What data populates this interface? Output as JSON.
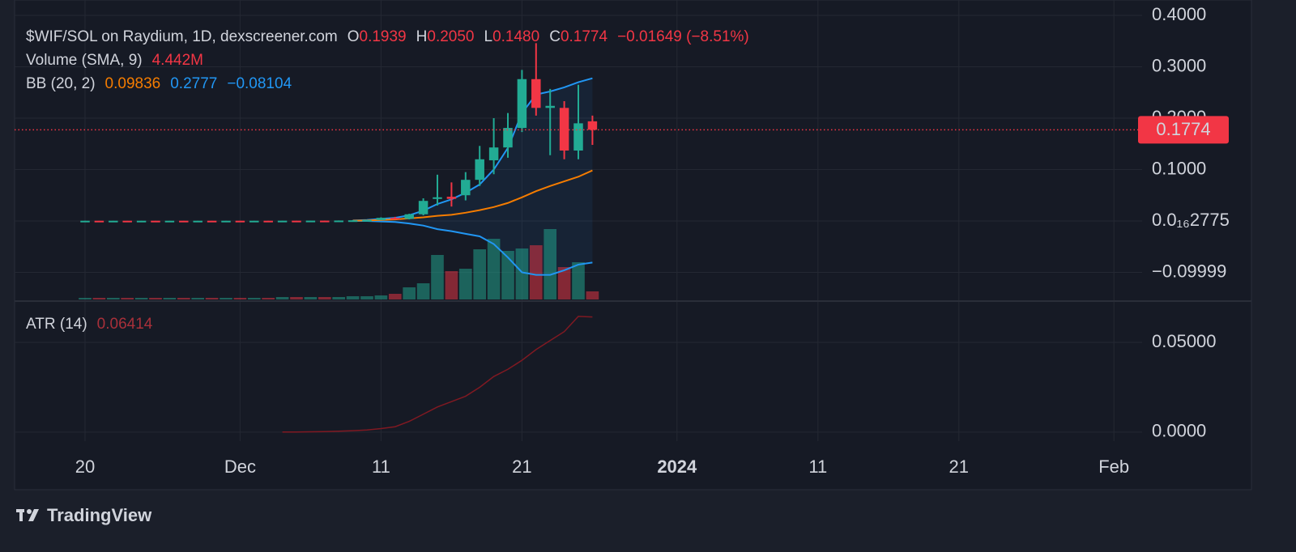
{
  "chart_data": {
    "type": "candlestick",
    "legend": {
      "title": "$WIF/SOL on Raydium, 1D, dexscreener.com",
      "ohlc": [
        {
          "key": "O",
          "value": "0.1939"
        },
        {
          "key": "H",
          "value": "0.2050"
        },
        {
          "key": "L",
          "value": "0.1480"
        },
        {
          "key": "C",
          "value": "0.1774"
        }
      ],
      "change": "−0.01649 (−8.51%)",
      "volume_name": "Volume (SMA, 9)",
      "volume_value": "4.442M",
      "bb_name": "BB (20, 2)",
      "bb_values": [
        "0.09836",
        "0.2777",
        "−0.08104"
      ],
      "atr_name": "ATR (14)",
      "atr_value": "0.06414"
    },
    "x": [
      "2023-11-20",
      "2023-11-21",
      "2023-11-22",
      "2023-11-23",
      "2023-11-24",
      "2023-11-25",
      "2023-11-26",
      "2023-11-27",
      "2023-11-28",
      "2023-11-29",
      "2023-11-30",
      "2023-12-01",
      "2023-12-02",
      "2023-12-03",
      "2023-12-04",
      "2023-12-05",
      "2023-12-06",
      "2023-12-07",
      "2023-12-08",
      "2023-12-09",
      "2023-12-10",
      "2023-12-11",
      "2023-12-12",
      "2023-12-13",
      "2023-12-14",
      "2023-12-15",
      "2023-12-16",
      "2023-12-17",
      "2023-12-18",
      "2023-12-19",
      "2023-12-20",
      "2023-12-21",
      "2023-12-22",
      "2023-12-23",
      "2023-12-24",
      "2023-12-25",
      "2023-12-26"
    ],
    "open": [
      0.0003,
      0.0004,
      0.0003,
      0.0004,
      0.0003,
      0.0004,
      0.0003,
      0.0004,
      0.0003,
      0.0004,
      0.0003,
      0.0004,
      0.0003,
      0.0004,
      0.0003,
      0.0005,
      0.0004,
      0.0006,
      0.0005,
      0.0008,
      0.0012,
      0.0018,
      0.006,
      0.004,
      0.013,
      0.043,
      0.047,
      0.05,
      0.08,
      0.118,
      0.143,
      0.181,
      0.276,
      0.22,
      0.22,
      0.137,
      0.1939
    ],
    "high": [
      0.0005,
      0.0005,
      0.0005,
      0.0005,
      0.0004,
      0.0005,
      0.0005,
      0.0005,
      0.0005,
      0.0005,
      0.0005,
      0.0005,
      0.0005,
      0.0006,
      0.0006,
      0.0006,
      0.0007,
      0.0008,
      0.0009,
      0.0015,
      0.002,
      0.007,
      0.008,
      0.014,
      0.044,
      0.09,
      0.075,
      0.095,
      0.146,
      0.2,
      0.21,
      0.294,
      0.346,
      0.257,
      0.233,
      0.265,
      0.205
    ],
    "low": [
      0.0002,
      0.0003,
      0.0003,
      0.0003,
      0.0002,
      0.0003,
      0.0003,
      0.0003,
      0.0003,
      0.0003,
      0.0003,
      0.0003,
      0.0003,
      0.0003,
      0.0003,
      0.0003,
      0.0004,
      0.0005,
      0.0005,
      0.0007,
      0.001,
      0.0015,
      0.003,
      0.003,
      0.011,
      0.03,
      0.028,
      0.04,
      0.068,
      0.091,
      0.123,
      0.173,
      0.205,
      0.128,
      0.12,
      0.12,
      0.148
    ],
    "close": [
      0.0004,
      0.0003,
      0.0004,
      0.0003,
      0.0004,
      0.0003,
      0.0004,
      0.0003,
      0.0004,
      0.0003,
      0.0004,
      0.0003,
      0.0004,
      0.0003,
      0.0005,
      0.0004,
      0.0006,
      0.0005,
      0.0008,
      0.0012,
      0.0018,
      0.006,
      0.004,
      0.013,
      0.039,
      0.046,
      0.043,
      0.08,
      0.12,
      0.143,
      0.181,
      0.276,
      0.22,
      0.224,
      0.137,
      0.19,
      0.1774
    ],
    "volume": [
      156800,
      156800,
      156800,
      156800,
      156800,
      156800,
      156800,
      156800,
      156800,
      156800,
      156800,
      156800,
      156800,
      156800,
      235200,
      235200,
      235200,
      235200,
      235200,
      313600,
      313600,
      392000,
      548800,
      1176000,
      1568000,
      4312000,
      2744000,
      2979200,
      4860800,
      5880000,
      4704000,
      4939200,
      5252800,
      6820800,
      3136000,
      3606400,
      784000
    ],
    "up_color": "#22ab94",
    "down_color": "#f23645",
    "bb": {
      "middle": [
        null,
        null,
        null,
        null,
        null,
        null,
        null,
        null,
        null,
        null,
        null,
        null,
        null,
        null,
        null,
        null,
        null,
        null,
        null,
        0.0005,
        0.001,
        0.002,
        0.003,
        0.005,
        0.007,
        0.01,
        0.012,
        0.016,
        0.021,
        0.027,
        0.035,
        0.046,
        0.058,
        0.068,
        0.077,
        0.086,
        0.09836
      ],
      "upper": [
        null,
        null,
        null,
        null,
        null,
        null,
        null,
        null,
        null,
        null,
        null,
        null,
        null,
        null,
        null,
        null,
        null,
        null,
        null,
        0.001,
        0.002,
        0.004,
        0.006,
        0.011,
        0.02,
        0.033,
        0.042,
        0.055,
        0.071,
        0.1,
        0.142,
        0.21,
        0.246,
        0.252,
        0.26,
        0.27,
        0.2777
      ],
      "lower": [
        null,
        null,
        null,
        null,
        null,
        null,
        null,
        null,
        null,
        null,
        null,
        null,
        null,
        null,
        null,
        null,
        null,
        null,
        null,
        0,
        0,
        -0.001,
        -0.002,
        -0.005,
        -0.009,
        -0.016,
        -0.02,
        -0.025,
        -0.03,
        -0.045,
        -0.071,
        -0.1,
        -0.105,
        -0.105,
        -0.096,
        -0.085,
        -0.08104
      ],
      "middle_color": "#f57c00",
      "band_color": "#2196f3"
    },
    "atr": {
      "values": [
        null,
        null,
        null,
        null,
        null,
        null,
        null,
        null,
        null,
        null,
        null,
        null,
        null,
        null,
        0.0001,
        0.0001,
        0.0002,
        0.0003,
        0.0005,
        0.0008,
        0.0012,
        0.002,
        0.003,
        0.006,
        0.01,
        0.014,
        0.017,
        0.02,
        0.025,
        0.031,
        0.035,
        0.04,
        0.046,
        0.051,
        0.056,
        0.0645,
        0.06414
      ],
      "color": "#801922",
      "ylim": [
        -0.005,
        0.073
      ],
      "yticks": [
        {
          "value": 0.05,
          "label": "0.05000"
        },
        {
          "value": 0,
          "label": "0.0000"
        }
      ]
    },
    "xlim": [
      "2023-11-15",
      "2024-02-03"
    ],
    "xticks": [
      {
        "value": "2023-11-20",
        "label": "20"
      },
      {
        "value": "2023-12-01",
        "label": "Dec"
      },
      {
        "value": "2023-12-11",
        "label": "11"
      },
      {
        "value": "2023-12-21",
        "label": "21"
      },
      {
        "value": "2024-01-01",
        "label": "2024"
      },
      {
        "value": "2024-01-11",
        "label": "11"
      },
      {
        "value": "2024-01-21",
        "label": "21"
      },
      {
        "value": "2024-02-01",
        "label": "Feb"
      }
    ],
    "ylim": [
      -0.156,
      0.43
    ],
    "yticks": [
      {
        "value": 0.4,
        "label": "0.4000"
      },
      {
        "value": 0.3,
        "label": "0.3000"
      },
      {
        "value": 0.2,
        "label": "0.2000"
      },
      {
        "value": 0.1,
        "label": "0.1000"
      },
      {
        "value": 2.775e-17,
        "label": "0.0₁₆2775"
      },
      {
        "value": -0.09999,
        "label": "−0.09999"
      }
    ],
    "grid": true
  },
  "brand": "TradingView"
}
